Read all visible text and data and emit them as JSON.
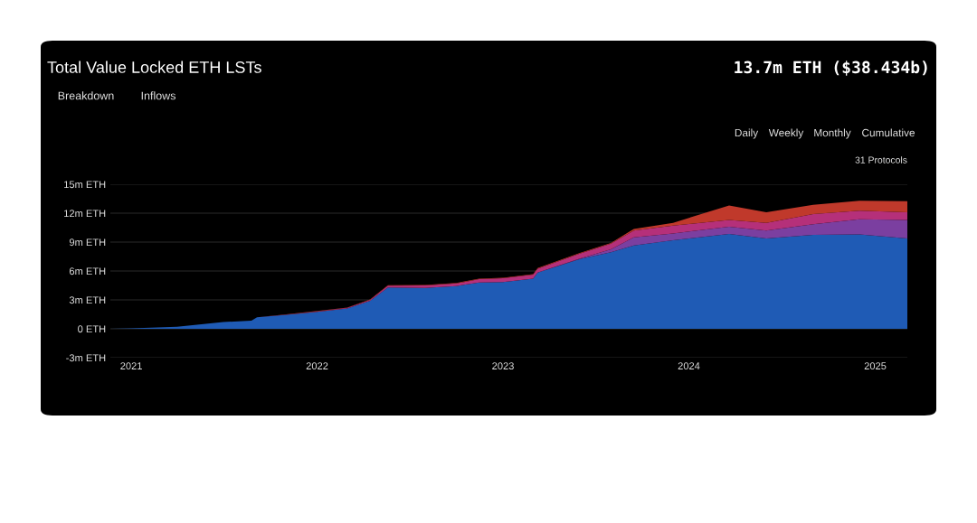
{
  "chart_data": {
    "type": "area",
    "stacked": true,
    "title": "Total Value Locked ETH LSTs",
    "subtitle": "13.7m ETH ($38.434b)",
    "annotations": [
      "Breakdown",
      "Inflows",
      "Daily",
      "Weekly",
      "Monthly",
      "Cumulative",
      "31 Protocols"
    ],
    "x": [
      "2020-11-21",
      "2021-01-01",
      "2021-04-01",
      "2021-07-01",
      "2021-08-25",
      "2021-09-05",
      "2021-11-01",
      "2022-01-01",
      "2022-03-01",
      "2022-04-15",
      "2022-05-20",
      "2022-08-01",
      "2022-10-01",
      "2022-11-15",
      "2023-01-01",
      "2023-03-01",
      "2023-03-10",
      "2023-06-01",
      "2023-08-01",
      "2023-09-15",
      "2023-12-01",
      "2024-03-20",
      "2024-06-01",
      "2024-09-01",
      "2024-12-01",
      "2025-03-05"
    ],
    "series": [
      {
        "color": "#1f5bb5",
        "values": [
          0,
          0.05,
          0.2,
          0.7,
          0.85,
          1.2,
          1.45,
          1.75,
          2.1,
          2.9,
          4.28,
          4.25,
          4.44,
          4.8,
          4.84,
          5.2,
          5.84,
          7.25,
          7.94,
          8.65,
          9.18,
          9.84,
          9.37,
          9.75,
          9.8,
          9.37
        ]
      },
      {
        "color": "#7b3fa0",
        "values": [
          0,
          0,
          0,
          0,
          0,
          0,
          0,
          0,
          0,
          0,
          0,
          0,
          0,
          0,
          0,
          0,
          0,
          0.05,
          0.3,
          0.85,
          0.72,
          0.76,
          0.83,
          1.09,
          1.57,
          1.93
        ]
      },
      {
        "color": "#b5307a",
        "values": [
          0,
          0,
          0,
          0,
          0,
          0,
          0.02,
          0.05,
          0.07,
          0.1,
          0.2,
          0.25,
          0.26,
          0.35,
          0.4,
          0.42,
          0.4,
          0.5,
          0.6,
          0.7,
          0.8,
          0.7,
          0.8,
          1.06,
          0.88,
          0.8
        ]
      },
      {
        "color": "#c0392b",
        "values": [
          0,
          0,
          0,
          0,
          0,
          0,
          0.03,
          0.05,
          0.03,
          0.05,
          0.05,
          0.05,
          0.05,
          0.05,
          0.06,
          0.06,
          0.06,
          0.07,
          0.06,
          0.17,
          0.3,
          1.5,
          1.1,
          0.97,
          1.03,
          1.15
        ]
      }
    ],
    "xlim": [
      "2020-11-21",
      "2025-03-05"
    ],
    "xticks": [
      {
        "value": "2021-01-01",
        "label": "2021"
      },
      {
        "value": "2022-01-01",
        "label": "2022"
      },
      {
        "value": "2023-01-01",
        "label": "2023"
      },
      {
        "value": "2024-01-01",
        "label": "2024"
      },
      {
        "value": "2025-01-01",
        "label": "2025"
      }
    ],
    "ylim": [
      -3,
      15
    ],
    "yticks": [
      {
        "value": -3,
        "label": "-3m ETH"
      },
      {
        "value": 0,
        "label": "0 ETH"
      },
      {
        "value": 3,
        "label": "3m ETH"
      },
      {
        "value": 6,
        "label": "6m ETH"
      },
      {
        "value": 9,
        "label": "9m ETH"
      },
      {
        "value": 12,
        "label": "12m ETH"
      },
      {
        "value": 15,
        "label": "15m ETH"
      }
    ],
    "grid": "y"
  }
}
